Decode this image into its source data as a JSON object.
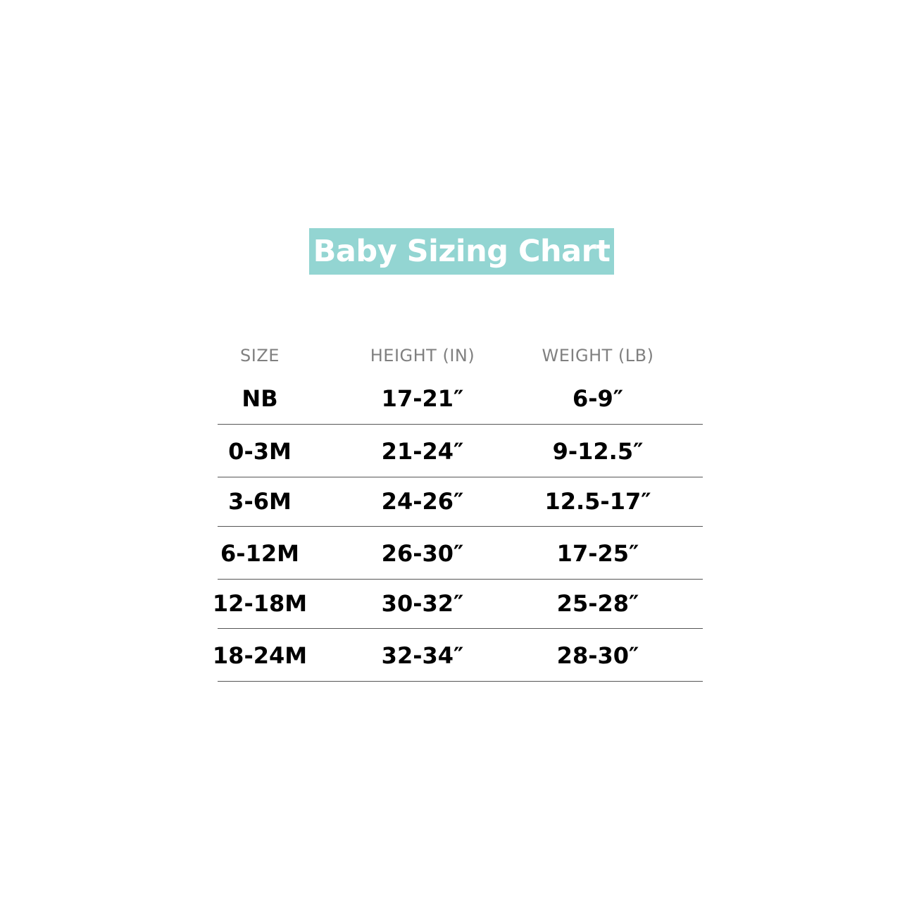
{
  "title": "Baby Sizing Chart",
  "colors": {
    "title_bg": "#93d5d2",
    "header_text": "#808080",
    "body_text": "#000000"
  },
  "table": {
    "headers": [
      "SIZE",
      "HEIGHT (IN)",
      "WEIGHT (LB)"
    ],
    "rows": [
      [
        "NB",
        "17-21″",
        "6-9″"
      ],
      [
        "0-3M",
        "21-24″",
        "9-12.5″"
      ],
      [
        "3-6M",
        "24-26″",
        "12.5-17″"
      ],
      [
        "6-12M",
        "26-30″",
        "17-25″"
      ],
      [
        "12-18M",
        "30-32″",
        "25-28″"
      ],
      [
        "18-24M",
        "32-34″",
        "28-30″"
      ]
    ]
  }
}
